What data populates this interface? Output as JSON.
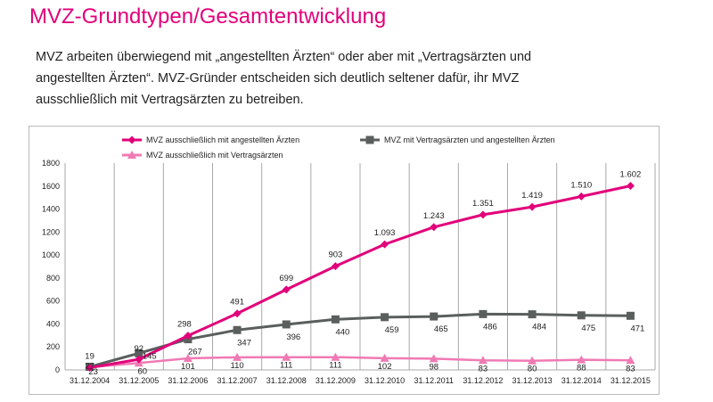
{
  "page": {
    "title": "MVZ-Grundtypen/Gesamtentwicklung",
    "intro_lines": [
      "MVZ arbeiten überwiegend mit „angestellten Ärzten“ oder aber mit „Vertragsärzten und",
      "angestellten Ärzten“. MVZ-Gründer entscheiden sich deutlich seltener dafür, ihr MVZ",
      "ausschließlich mit Vertragsärzten zu betreiben."
    ]
  },
  "chart_data": {
    "type": "line",
    "title": "",
    "xlabel": "",
    "ylabel": "",
    "ylim": [
      0,
      1800
    ],
    "yticks": [
      0,
      200,
      400,
      600,
      800,
      1000,
      1200,
      1400,
      1600,
      1800
    ],
    "categories": [
      "31.12.2004",
      "31.12.2005",
      "31.12.2006",
      "31.12.2007",
      "31.12.2008",
      "31.12.2009",
      "31.12.2010",
      "31.12.2011",
      "31.12.2012",
      "31.12.2013",
      "31.12.2014",
      "31.12.2015"
    ],
    "grid": "vertical",
    "legend_position": "top",
    "series": [
      {
        "name": "MVZ ausschließlich mit angestellten Ärzten",
        "color": "#e2007a",
        "marker": "diamond",
        "values": [
          19,
          92,
          298,
          491,
          699,
          903,
          1093,
          1243,
          1351,
          1419,
          1510,
          1602
        ],
        "labels": [
          "19",
          "92",
          "298",
          "491",
          "699",
          "903",
          "1.093",
          "1.243",
          "1.351",
          "1.419",
          "1.510",
          "1.602"
        ]
      },
      {
        "name": "MVZ mit Vertragsärzten und angestellten Ärzten",
        "color": "#5a5f5e",
        "marker": "square",
        "values": [
          27,
          145,
          267,
          347,
          396,
          440,
          459,
          465,
          486,
          484,
          475,
          471
        ],
        "labels": [
          "27",
          "145",
          "267",
          "347",
          "396",
          "440",
          "459",
          "465",
          "486",
          "484",
          "475",
          "471"
        ]
      },
      {
        "name": "MVZ ausschließlich mit Vertragsärzten",
        "color": "#f07ab4",
        "marker": "triangle",
        "values": [
          23,
          60,
          101,
          110,
          111,
          111,
          102,
          98,
          83,
          80,
          88,
          83
        ],
        "labels": [
          "23",
          "60",
          "101",
          "110",
          "111",
          "111",
          "102",
          "98",
          "83",
          "80",
          "88",
          "83"
        ]
      }
    ]
  }
}
